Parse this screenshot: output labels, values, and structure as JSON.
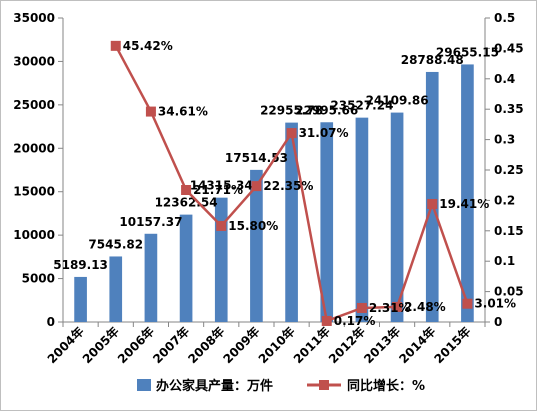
{
  "chart_data": {
    "type": "bar",
    "categories": [
      "2004年",
      "2005年",
      "2006年",
      "2007年",
      "2008年",
      "2009年",
      "2010年",
      "2011年",
      "2012年",
      "2013年",
      "2014年",
      "2015年"
    ],
    "series": [
      {
        "name": "办公家具产量：万件",
        "type": "bar",
        "axis": "left",
        "color": "#4f81bd",
        "values": [
          5189.13,
          7545.82,
          10157.37,
          12362.54,
          14315.34,
          17514.53,
          22955.78,
          22995.66,
          23527.24,
          24109.86,
          28788.48,
          29655.15
        ],
        "labels": [
          "5189.13",
          "7545.82",
          "10157.37",
          "12362.54",
          "14315.34",
          "17514.53",
          "22955.78",
          "22995.66",
          "23527.24",
          "24109.86",
          "28788.48",
          "29655.15"
        ]
      },
      {
        "name": "同比增长：%",
        "type": "line",
        "axis": "right",
        "color": "#c0504d",
        "values": [
          null,
          0.4542,
          0.3461,
          0.2171,
          0.158,
          0.2235,
          0.3107,
          0.0017,
          0.0231,
          0.0248,
          0.1941,
          0.0301
        ],
        "labels": [
          "",
          "45.42%",
          "34.61%",
          "21.71%",
          "15.80%",
          "22.35%",
          "31.07%",
          "0.17%",
          "2.31%",
          "2.48%",
          "19.41%",
          "3.01%"
        ]
      }
    ],
    "y_left": {
      "min": 0,
      "max": 35000,
      "ticks": [
        "0",
        "5000",
        "10000",
        "15000",
        "20000",
        "25000",
        "30000",
        "35000"
      ]
    },
    "y_right": {
      "min": 0,
      "max": 0.5,
      "ticks": [
        "0",
        "0.05",
        "0.1",
        "0.15",
        "0.2",
        "0.25",
        "0.3",
        "0.35",
        "0.4",
        "0.45",
        "0.5"
      ]
    },
    "title": "",
    "xlabel": "",
    "ylabel": "",
    "grid": false,
    "legend": "bottom"
  }
}
